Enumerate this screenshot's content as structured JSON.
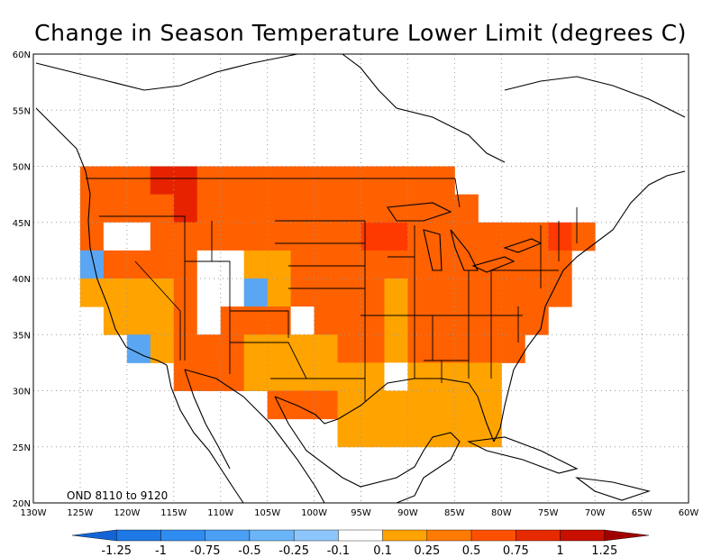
{
  "title": "Change in Season Temperature Lower Limit (degrees C)",
  "period_label": "OND 8110 to 9120",
  "x_ticks": [
    "130W",
    "125W",
    "120W",
    "115W",
    "110W",
    "105W",
    "100W",
    "95W",
    "90W",
    "85W",
    "80W",
    "75W",
    "70W",
    "65W",
    "60W"
  ],
  "y_ticks": [
    "60N",
    "55N",
    "50N",
    "45N",
    "40N",
    "35N",
    "30N",
    "25N",
    "20N"
  ],
  "colorbar": {
    "labels": [
      "-1.25",
      "-1",
      "-0.75",
      "-0.5",
      "-0.25",
      "-0.1",
      "0.1",
      "0.25",
      "0.5",
      "0.75",
      "1",
      "1.25"
    ],
    "colors": [
      "#1463d6",
      "#1e78e6",
      "#2f8cf0",
      "#4aa0f5",
      "#6ab4f8",
      "#8cc6fa",
      "#ffffff",
      "#ffa300",
      "#ff7a00",
      "#ff5000",
      "#e62a00",
      "#c80f00",
      "#a00000"
    ]
  },
  "legend_classes": {
    "blue": "#5aa6f2",
    "white": "#ffffff",
    "gold": "#ffa300",
    "orange": "#ff6000",
    "red_orange": "#ff3a00",
    "red": "#e62200"
  },
  "chart_data": {
    "type": "heatmap",
    "title": "Change in Season Temperature Lower Limit (degrees C)",
    "xlim": [
      -130,
      -60
    ],
    "ylim": [
      20,
      60
    ],
    "grid": true,
    "cell_size_deg": 2.5,
    "legend_placement": "bottom",
    "annotation": "OND 8110 to 9120"
  }
}
